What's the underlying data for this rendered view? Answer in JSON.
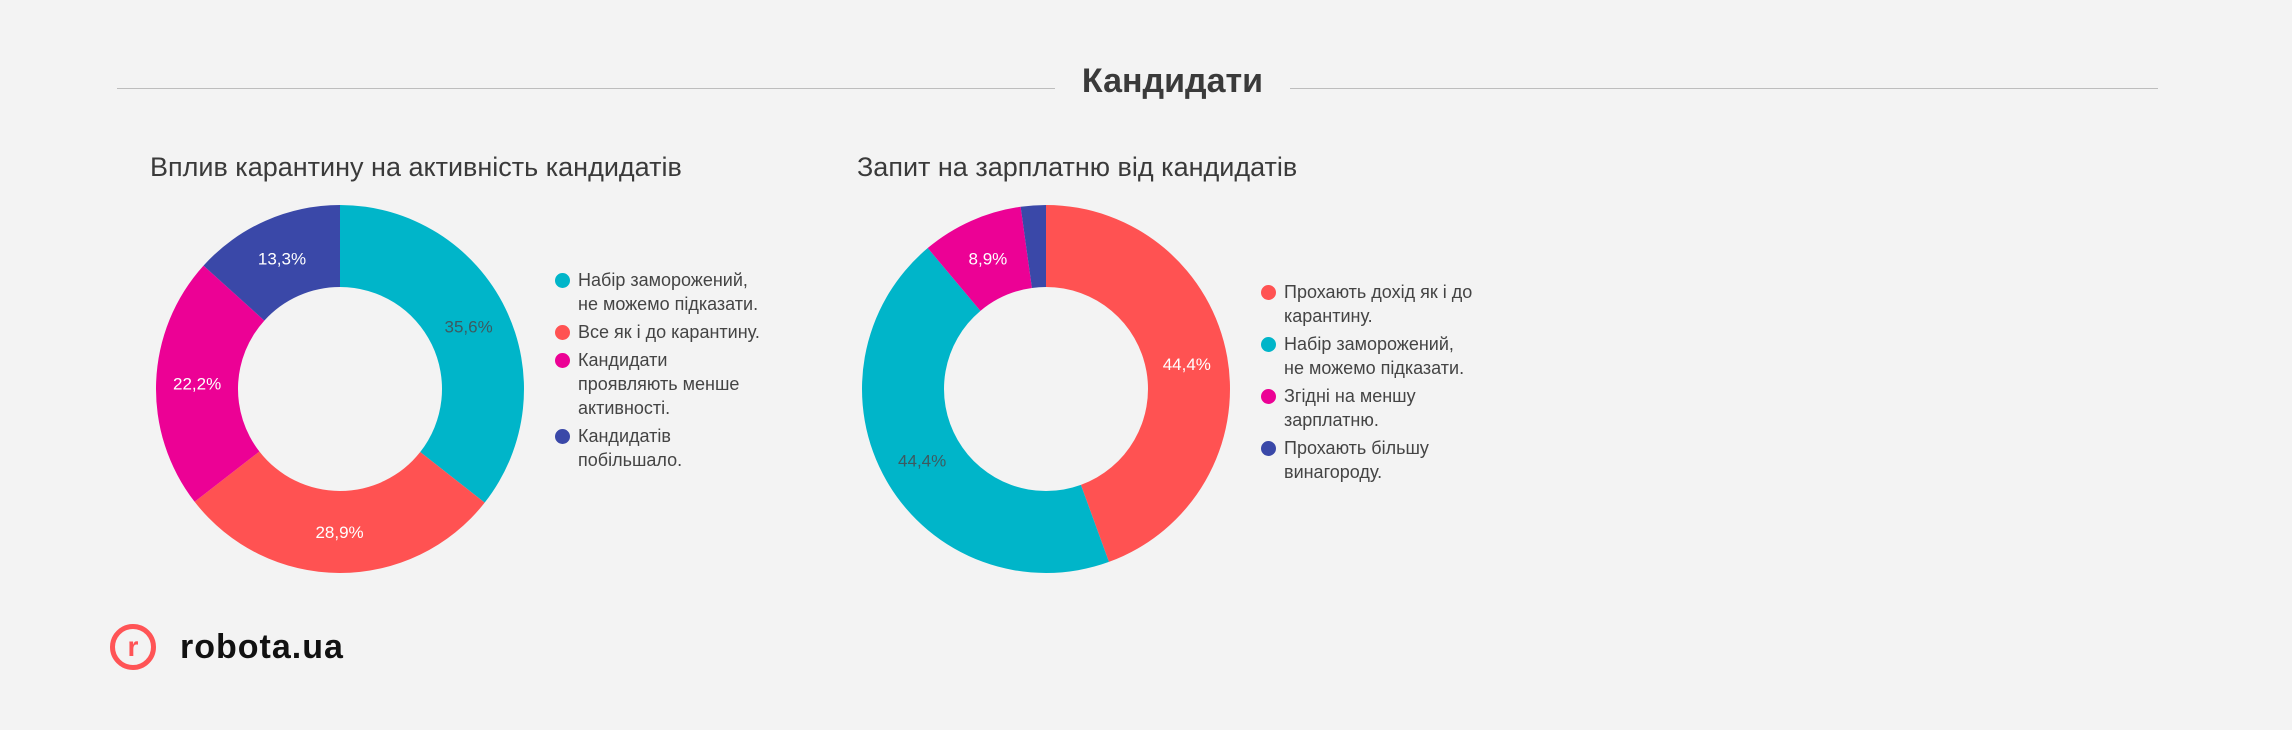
{
  "header": {
    "title": "Кандидати"
  },
  "chart_data": [
    {
      "type": "pie",
      "donut": true,
      "title": "Вплив карантину на активність кандидатів",
      "legend_position": "right",
      "slices": [
        {
          "label": "Набір заморожений, не можемо підказати.",
          "value": 35.6,
          "display": "35,6%",
          "color": "#00b5c9",
          "label_color": "#3d5a60"
        },
        {
          "label": "Все як і до карантину.",
          "value": 28.9,
          "display": "28,9%",
          "color": "#ff5252",
          "label_color": "#ffffff"
        },
        {
          "label": "Кандидати проявляють менше активності.",
          "value": 22.2,
          "display": "22,2%",
          "color": "#ec0195",
          "label_color": "#ffffff"
        },
        {
          "label": "Кандидатів побільшало.",
          "value": 13.3,
          "display": "13,3%",
          "color": "#3a48a8",
          "label_color": "#ffffff"
        }
      ]
    },
    {
      "type": "pie",
      "donut": true,
      "title": "Запит на зарплатню від кандидатів",
      "legend_position": "right",
      "slices": [
        {
          "label": "Прохають дохід як і до карантину.",
          "value": 44.4,
          "display": "44,4%",
          "color": "#ff5252",
          "label_color": "#ffffff"
        },
        {
          "label": "Набір заморожений, не можемо підказати.",
          "value": 44.4,
          "display": "44,4%",
          "color": "#00b5c9",
          "label_color": "#3d5a60"
        },
        {
          "label": "Згідні на меншу зарплатню.",
          "value": 8.9,
          "display": "8,9%",
          "color": "#ec0195",
          "label_color": "#ffffff"
        },
        {
          "label": "Прохають більшу винагороду.",
          "value": 2.2,
          "display": "",
          "color": "#3a48a8",
          "label_color": "#ffffff"
        }
      ]
    }
  ],
  "logo": {
    "mark": "r",
    "text": "robota.ua",
    "color": "#ff5456"
  }
}
